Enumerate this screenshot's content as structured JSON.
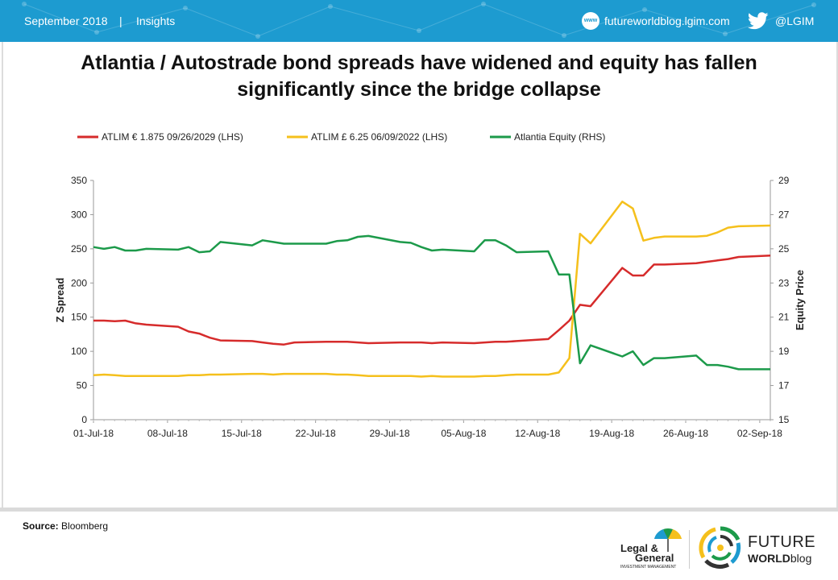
{
  "header": {
    "date": "September 2018",
    "separator": "|",
    "section": "Insights",
    "website": "futureworldblog.lgim.com",
    "website_icon_text": "www",
    "twitter": "@LGIM",
    "brand_color": "#1d9bd0"
  },
  "title_line1": "Atlantia / Autostrade bond spreads have widened and equity has fallen",
  "title_line2": "significantly since the bridge collapse",
  "source_label": "Source:",
  "source_value": "Bloomberg",
  "logos": {
    "lg_line1": "Legal &",
    "lg_line2": "General",
    "lg_line3": "INVESTMENT MANAGEMENT",
    "fw_line1": "FUTURE",
    "fw_line2a": "WORLD",
    "fw_line2b": "blog"
  },
  "chart_data": {
    "type": "line",
    "x_ticks": [
      "01-Jul-18",
      "08-Jul-18",
      "15-Jul-18",
      "22-Jul-18",
      "29-Jul-18",
      "05-Aug-18",
      "12-Aug-18",
      "19-Aug-18",
      "26-Aug-18",
      "02-Sep-18"
    ],
    "x_range": [
      "2018-07-01",
      "2018-09-03"
    ],
    "ylabel": "Z Spread",
    "y2label": "Equity Price",
    "ylim": [
      0,
      350
    ],
    "y_ticks": [
      0,
      50,
      100,
      150,
      200,
      250,
      300,
      350
    ],
    "y2lim": [
      15,
      29
    ],
    "y2_ticks": [
      15,
      17,
      19,
      21,
      23,
      25,
      27,
      29
    ],
    "grid": false,
    "legend_position": "top",
    "series": [
      {
        "name": "ATLIM € 1.875 09/26/2029  (LHS)",
        "axis": "left",
        "color": "#d62b2b",
        "x": [
          "2018-07-01",
          "2018-07-02",
          "2018-07-03",
          "2018-07-04",
          "2018-07-05",
          "2018-07-06",
          "2018-07-09",
          "2018-07-10",
          "2018-07-11",
          "2018-07-12",
          "2018-07-13",
          "2018-07-16",
          "2018-07-17",
          "2018-07-18",
          "2018-07-19",
          "2018-07-20",
          "2018-07-23",
          "2018-07-24",
          "2018-07-25",
          "2018-07-26",
          "2018-07-27",
          "2018-07-30",
          "2018-07-31",
          "2018-08-01",
          "2018-08-02",
          "2018-08-03",
          "2018-08-06",
          "2018-08-07",
          "2018-08-08",
          "2018-08-09",
          "2018-08-10",
          "2018-08-13",
          "2018-08-14",
          "2018-08-15",
          "2018-08-16",
          "2018-08-17",
          "2018-08-20",
          "2018-08-21",
          "2018-08-22",
          "2018-08-23",
          "2018-08-24",
          "2018-08-27",
          "2018-08-28",
          "2018-08-29",
          "2018-08-30",
          "2018-08-31",
          "2018-09-03"
        ],
        "values": [
          145,
          145,
          144,
          145,
          141,
          139,
          136,
          129,
          126,
          120,
          116,
          115,
          113,
          111,
          110,
          113,
          114,
          114,
          114,
          113,
          112,
          113,
          113,
          113,
          112,
          113,
          112,
          113,
          114,
          114,
          115,
          118,
          131,
          145,
          168,
          166,
          222,
          211,
          211,
          227,
          227,
          229,
          231,
          233,
          235,
          238,
          240
        ]
      },
      {
        "name": "ATLIM £ 6.25 06/09/2022 (LHS)",
        "axis": "left",
        "color": "#f5c01c",
        "x": [
          "2018-07-01",
          "2018-07-02",
          "2018-07-03",
          "2018-07-04",
          "2018-07-05",
          "2018-07-06",
          "2018-07-09",
          "2018-07-10",
          "2018-07-11",
          "2018-07-12",
          "2018-07-13",
          "2018-07-16",
          "2018-07-17",
          "2018-07-18",
          "2018-07-19",
          "2018-07-20",
          "2018-07-23",
          "2018-07-24",
          "2018-07-25",
          "2018-07-26",
          "2018-07-27",
          "2018-07-30",
          "2018-07-31",
          "2018-08-01",
          "2018-08-02",
          "2018-08-03",
          "2018-08-06",
          "2018-08-07",
          "2018-08-08",
          "2018-08-09",
          "2018-08-10",
          "2018-08-13",
          "2018-08-14",
          "2018-08-15",
          "2018-08-16",
          "2018-08-17",
          "2018-08-20",
          "2018-08-21",
          "2018-08-22",
          "2018-08-23",
          "2018-08-24",
          "2018-08-27",
          "2018-08-28",
          "2018-08-29",
          "2018-08-30",
          "2018-08-31",
          "2018-09-03"
        ],
        "values": [
          65,
          66,
          65,
          64,
          64,
          64,
          64,
          65,
          65,
          66,
          66,
          67,
          67,
          66,
          67,
          67,
          67,
          66,
          66,
          65,
          64,
          64,
          64,
          63,
          64,
          63,
          63,
          64,
          64,
          65,
          66,
          66,
          69,
          90,
          272,
          258,
          319,
          309,
          262,
          266,
          268,
          268,
          269,
          274,
          281,
          283,
          284
        ]
      },
      {
        "name": "Atlantia Equity (RHS)",
        "axis": "right",
        "color": "#1c9a4a",
        "x": [
          "2018-07-01",
          "2018-07-02",
          "2018-07-03",
          "2018-07-04",
          "2018-07-05",
          "2018-07-06",
          "2018-07-09",
          "2018-07-10",
          "2018-07-11",
          "2018-07-12",
          "2018-07-13",
          "2018-07-16",
          "2018-07-17",
          "2018-07-18",
          "2018-07-19",
          "2018-07-20",
          "2018-07-23",
          "2018-07-24",
          "2018-07-25",
          "2018-07-26",
          "2018-07-27",
          "2018-07-30",
          "2018-07-31",
          "2018-08-01",
          "2018-08-02",
          "2018-08-03",
          "2018-08-06",
          "2018-08-07",
          "2018-08-08",
          "2018-08-09",
          "2018-08-10",
          "2018-08-13",
          "2018-08-14",
          "2018-08-15",
          "2018-08-16",
          "2018-08-17",
          "2018-08-20",
          "2018-08-21",
          "2018-08-22",
          "2018-08-23",
          "2018-08-24",
          "2018-08-27",
          "2018-08-28",
          "2018-08-29",
          "2018-08-30",
          "2018-08-31",
          "2018-09-03"
        ],
        "values": [
          25.1,
          25.0,
          25.1,
          24.9,
          24.9,
          25.0,
          24.95,
          25.1,
          24.8,
          24.85,
          25.4,
          25.2,
          25.5,
          25.4,
          25.3,
          25.3,
          25.3,
          25.45,
          25.5,
          25.7,
          25.75,
          25.4,
          25.35,
          25.1,
          24.9,
          24.95,
          24.85,
          25.5,
          25.5,
          25.2,
          24.8,
          24.85,
          23.5,
          23.5,
          18.3,
          19.35,
          18.7,
          19.0,
          18.2,
          18.6,
          18.6,
          18.75,
          18.2,
          18.2,
          18.1,
          17.95,
          17.95
        ]
      }
    ]
  }
}
